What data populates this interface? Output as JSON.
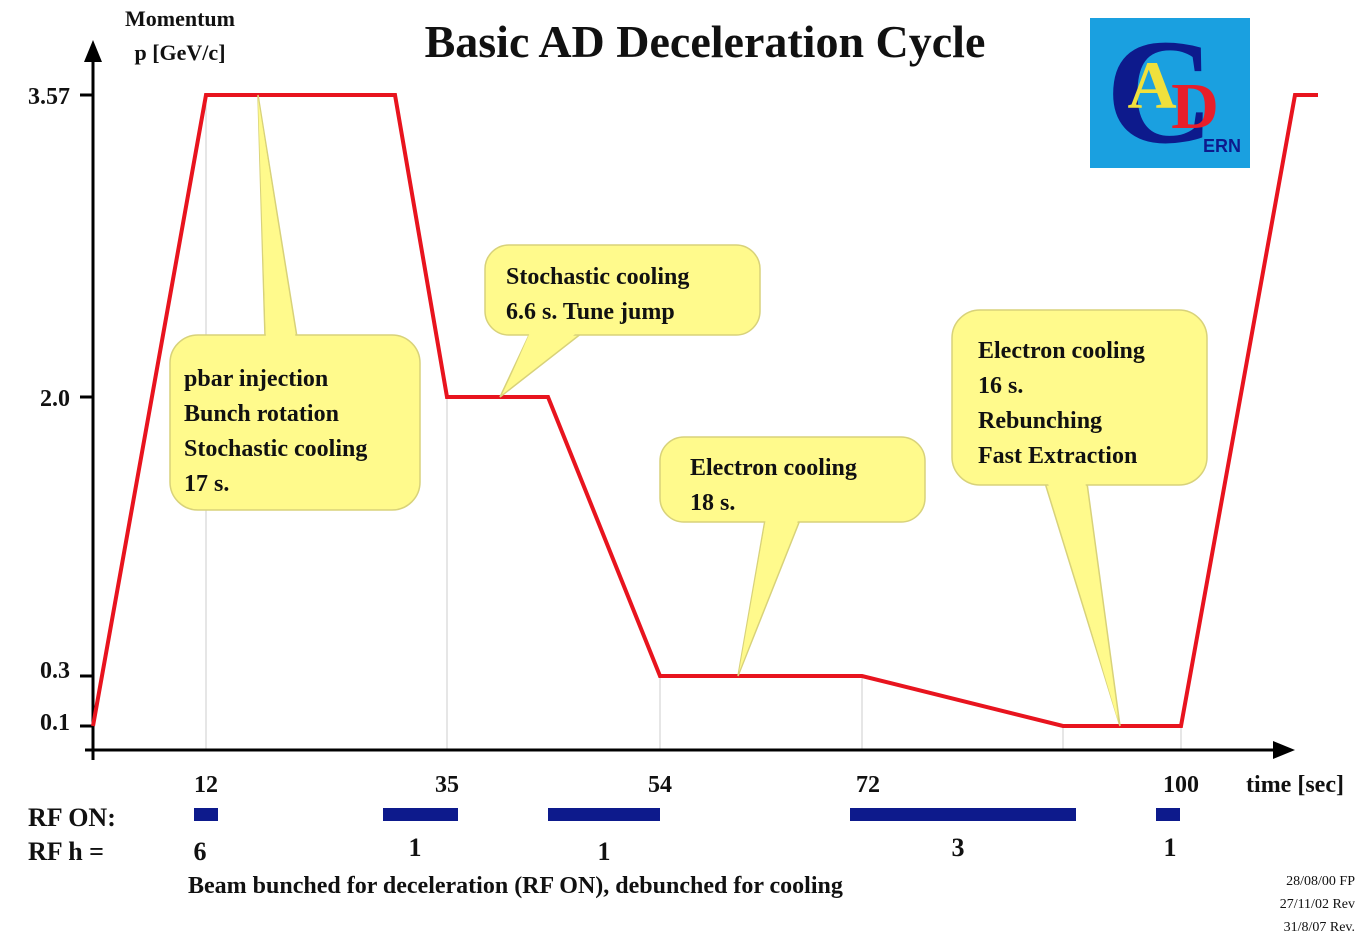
{
  "title": "Basic AD Deceleration Cycle",
  "y_axis": {
    "label": [
      "Momentum",
      "p [GeV/c]"
    ],
    "ticks": [
      "3.57",
      "2.0",
      "0.3",
      "0.1"
    ]
  },
  "x_axis": {
    "label": "time [sec]",
    "ticks": [
      "12",
      "35",
      "54",
      "72",
      "100"
    ]
  },
  "callouts": [
    {
      "lines": [
        "pbar injection",
        "Bunch rotation",
        "Stochastic cooling",
        "17 s."
      ]
    },
    {
      "lines": [
        "Stochastic cooling",
        "6.6 s. Tune jump"
      ]
    },
    {
      "lines": [
        "Electron cooling",
        "18 s."
      ]
    },
    {
      "lines": [
        "Electron cooling",
        "16 s.",
        "Rebunching",
        "Fast Extraction"
      ]
    }
  ],
  "rf_on": {
    "label": "RF ON:"
  },
  "rf_h": {
    "label": "RF h =",
    "values": [
      "6",
      "1",
      "1",
      "3",
      "1"
    ]
  },
  "note": "Beam bunched for deceleration (RF ON), debunched for cooling",
  "revisions": [
    "28/08/00 FP",
    "27/11/02 Rev",
    "31/8/07 Rev."
  ],
  "logo": {
    "letters": [
      "C",
      "A",
      "D",
      "ERN"
    ]
  }
}
